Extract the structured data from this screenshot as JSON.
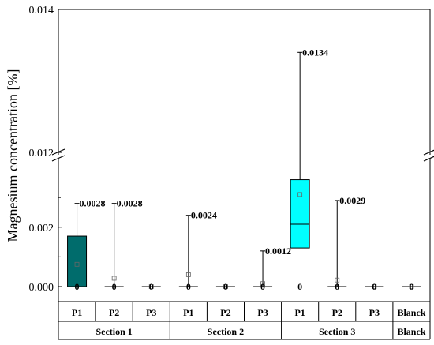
{
  "chart_data": {
    "type": "box",
    "ylabel": "Magnesium concentration [%]",
    "y_axis_break": [
      0.0042,
      0.012
    ],
    "y_ticks_lower": [
      "0.000",
      "0.002"
    ],
    "y_ticks_upper": [
      "0.012",
      "0.014"
    ],
    "sections": [
      "Section 1",
      "Section 2",
      "Section 3",
      "Blanck"
    ],
    "categories": [
      {
        "label": "P1",
        "section": "Section 1",
        "color": "#006c6c",
        "q1": 0.0,
        "median": 0.0,
        "q3": 0.0017,
        "mean": 0.00075,
        "min": 0.0,
        "max": 0.0028,
        "max_label": "0.0028",
        "min_label": "0"
      },
      {
        "label": "P2",
        "section": "Section 1",
        "color": "#009090",
        "q1": 0.0,
        "median": 0.0,
        "q3": 0.0,
        "mean": 0.00028,
        "min": 0.0,
        "max": 0.0028,
        "max_label": "0.0028",
        "min_label": "0"
      },
      {
        "label": "P3",
        "section": "Section 1",
        "color": "#009090",
        "q1": 0.0,
        "median": 0.0,
        "q3": 0.0,
        "mean": 0.0,
        "min": 0.0,
        "max": 0.0,
        "max_label": "",
        "min_label": "0"
      },
      {
        "label": "P1",
        "section": "Section 2",
        "color": "#009090",
        "q1": 0.0,
        "median": 0.0,
        "q3": 0.0,
        "mean": 0.0004,
        "min": 0.0,
        "max": 0.0024,
        "max_label": "0.0024",
        "min_label": "0"
      },
      {
        "label": "P2",
        "section": "Section 2",
        "color": "#009090",
        "q1": 0.0,
        "median": 0.0,
        "q3": 0.0,
        "mean": 0.0,
        "min": 0.0,
        "max": 0.0,
        "max_label": "",
        "min_label": "0"
      },
      {
        "label": "P3",
        "section": "Section 2",
        "color": "#009090",
        "q1": 0.0,
        "median": 0.0,
        "q3": 0.0,
        "mean": 0.0001,
        "min": 0.0,
        "max": 0.0012,
        "max_label": "0.0012",
        "min_label": "0"
      },
      {
        "label": "P1",
        "section": "Section 3",
        "color": "#00ffff",
        "q1": 0.0013,
        "median": 0.0021,
        "q3": 0.0036,
        "mean": 0.0031,
        "min": 0.0,
        "max": 0.0134,
        "max_label": "0.0134",
        "min_label": "0"
      },
      {
        "label": "P2",
        "section": "Section 3",
        "color": "#009090",
        "q1": 0.0,
        "median": 0.0,
        "q3": 0.0,
        "mean": 0.00022,
        "min": 0.0,
        "max": 0.0029,
        "max_label": "0.0029",
        "min_label": "0"
      },
      {
        "label": "P3",
        "section": "Section 3",
        "color": "#009090",
        "q1": 0.0,
        "median": 0.0,
        "q3": 0.0,
        "mean": 0.0,
        "min": 0.0,
        "max": 0.0,
        "max_label": "",
        "min_label": "0"
      },
      {
        "label": "Blanck",
        "section": "Blanck",
        "color": "#009090",
        "q1": 0.0,
        "median": 0.0,
        "q3": 0.0,
        "mean": 0.0,
        "min": 0.0,
        "max": 0.0,
        "max_label": "",
        "min_label": "0"
      }
    ]
  }
}
